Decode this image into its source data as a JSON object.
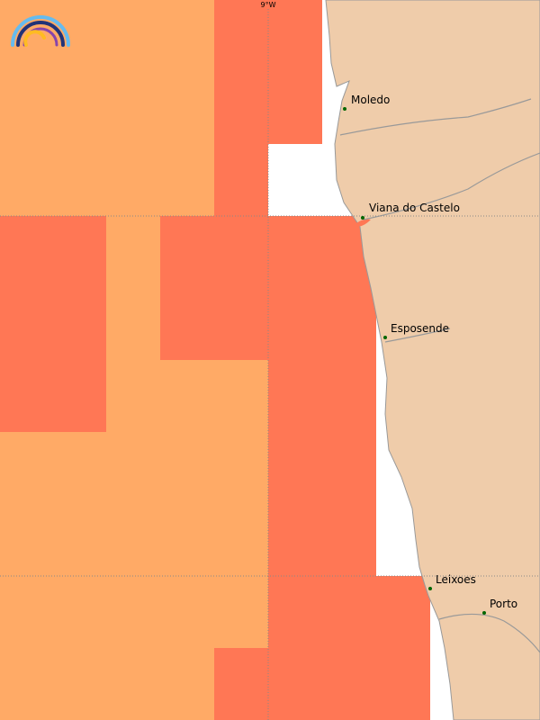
{
  "map": {
    "longitude_label": "9°W",
    "places": [
      "Moledo",
      "Viana do Castelo",
      "Esposende",
      "Leixoes",
      "Porto"
    ]
  }
}
